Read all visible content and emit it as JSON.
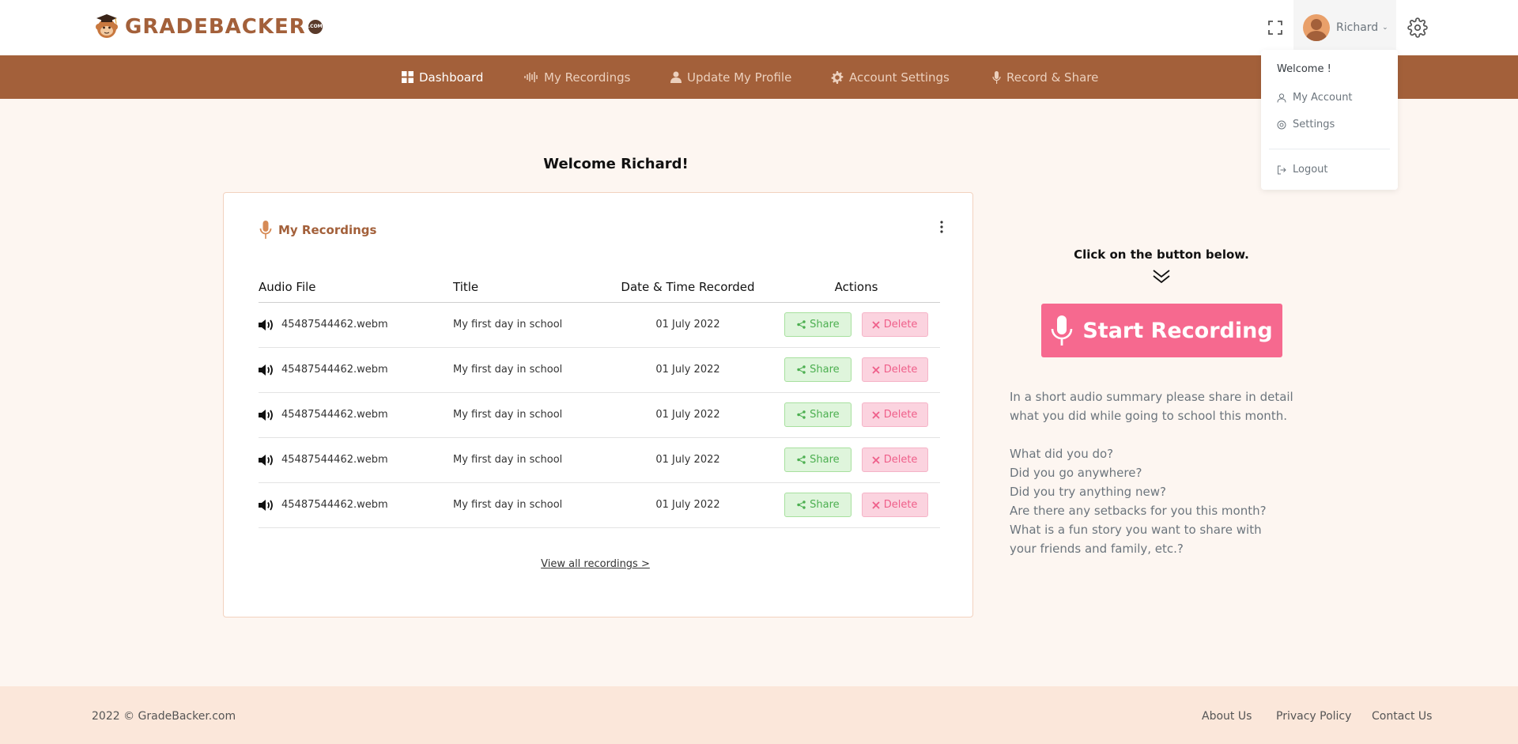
{
  "brand": {
    "name": "GRADEBACKER",
    "suffix": ".COM"
  },
  "header": {
    "user_name": "Richard"
  },
  "nav": {
    "items": [
      {
        "label": "Dashboard",
        "icon": "grid-icon",
        "active": true
      },
      {
        "label": "My Recordings",
        "icon": "waveform-icon",
        "active": false
      },
      {
        "label": "Update My Profile",
        "icon": "user-icon",
        "active": false
      },
      {
        "label": "Account Settings",
        "icon": "gear-icon",
        "active": false
      },
      {
        "label": "Record & Share",
        "icon": "microphone-icon",
        "active": false
      }
    ]
  },
  "user_menu": {
    "welcome": "Welcome !",
    "items": [
      {
        "label": "My Account",
        "icon": "user-icon"
      },
      {
        "label": "Settings",
        "icon": "gear-icon"
      },
      {
        "label": "Logout",
        "icon": "logout-icon"
      }
    ]
  },
  "main": {
    "welcome": "Welcome Richard!",
    "recordings_card": {
      "title": "My Recordings",
      "columns": [
        "Audio File",
        "Title",
        "Date & Time Recorded",
        "Actions"
      ],
      "rows": [
        {
          "file": "45487544462.webm",
          "title": "My first day in school",
          "date": "01 July 2022"
        },
        {
          "file": "45487544462.webm",
          "title": "My first day in school",
          "date": "01 July 2022"
        },
        {
          "file": "45487544462.webm",
          "title": "My first day in school",
          "date": "01 July 2022"
        },
        {
          "file": "45487544462.webm",
          "title": "My first day in school",
          "date": "01 July 2022"
        },
        {
          "file": "45487544462.webm",
          "title": "My first day in school",
          "date": "01 July 2022"
        }
      ],
      "share_label": "Share",
      "delete_label": "Delete",
      "view_all": "View all recordings >"
    }
  },
  "recorder": {
    "cta_label": "Click on the button below.",
    "start_label": "Start Recording",
    "intro": "In a short audio summary please share in detail what you did while going to school this month.",
    "questions": [
      "What did you do?",
      "Did you go anywhere?",
      "Did you try anything new?",
      "Are there any setbacks for you this month?",
      "What is a fun story you want to share with your friends and family, etc.?"
    ]
  },
  "footer": {
    "copyright": "2022 © GradeBacker.com",
    "links": [
      "About Us",
      "Privacy Policy",
      "Contact Us"
    ]
  },
  "colors": {
    "brand_brown": "#a3603a",
    "accent_pink": "#f6698f",
    "share_green": "#4caf50",
    "delete_pink": "#ef5f8a",
    "page_bg": "#fdf6f1",
    "footer_bg": "#fbe7da"
  }
}
